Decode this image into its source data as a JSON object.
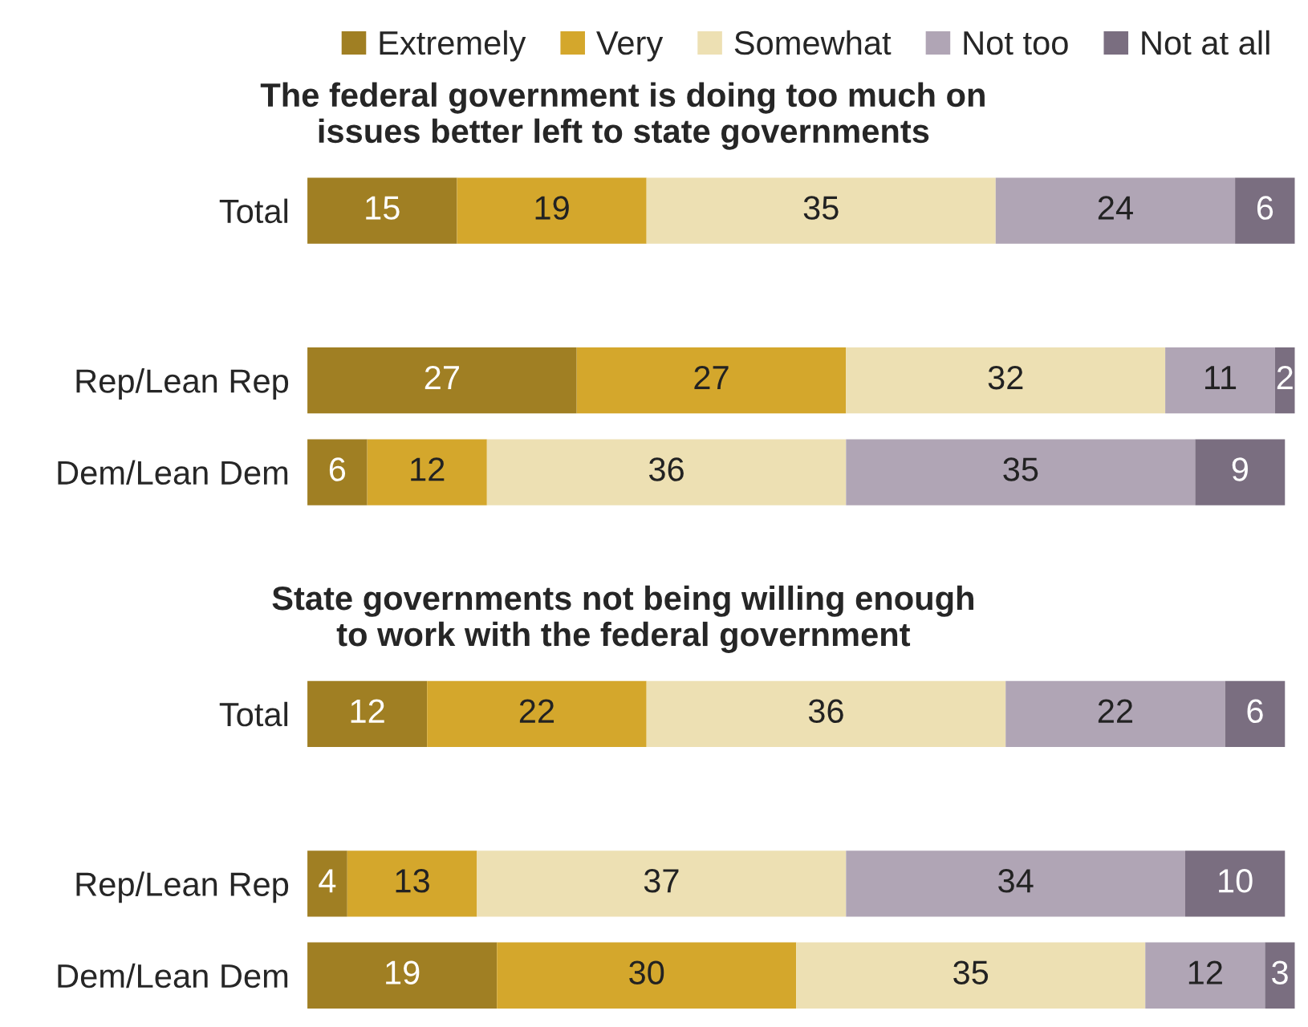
{
  "chart_data": [
    {
      "type": "bar",
      "orientation": "horizontal",
      "stacked": true,
      "data_labels": true,
      "legend": "top",
      "grid": false,
      "title": "The federal government is doing too much on\nissues better left to state governments",
      "categories": [
        "Total",
        "Rep/Lean Rep",
        "Dem/Lean Dem"
      ],
      "series": [
        {
          "name": "Extremely",
          "color": "#a07f23",
          "values": [
            15,
            27,
            6
          ]
        },
        {
          "name": "Very",
          "color": "#d4a72c",
          "values": [
            19,
            27,
            12
          ]
        },
        {
          "name": "Somewhat",
          "color": "#ede0b3",
          "values": [
            35,
            32,
            36
          ]
        },
        {
          "name": "Not too",
          "color": "#b0a5b5",
          "values": [
            24,
            11,
            35
          ]
        },
        {
          "name": "Not at all",
          "color": "#7a6e80",
          "values": [
            6,
            2,
            9
          ]
        }
      ]
    },
    {
      "type": "bar",
      "orientation": "horizontal",
      "stacked": true,
      "data_labels": true,
      "grid": false,
      "title": "State governments not being willing enough\nto work with the federal government",
      "categories": [
        "Total",
        "Rep/Lean Rep",
        "Dem/Lean Dem"
      ],
      "series": [
        {
          "color": "#a07f23",
          "values": [
            12,
            4,
            19
          ]
        },
        {
          "color": "#d4a72c",
          "values": [
            22,
            13,
            30
          ]
        },
        {
          "color": "#ede0b3",
          "values": [
            36,
            37,
            35
          ]
        },
        {
          "color": "#b0a5b5",
          "values": [
            22,
            34,
            12
          ]
        },
        {
          "color": "#7a6e80",
          "values": [
            6,
            10,
            3
          ]
        }
      ]
    }
  ]
}
